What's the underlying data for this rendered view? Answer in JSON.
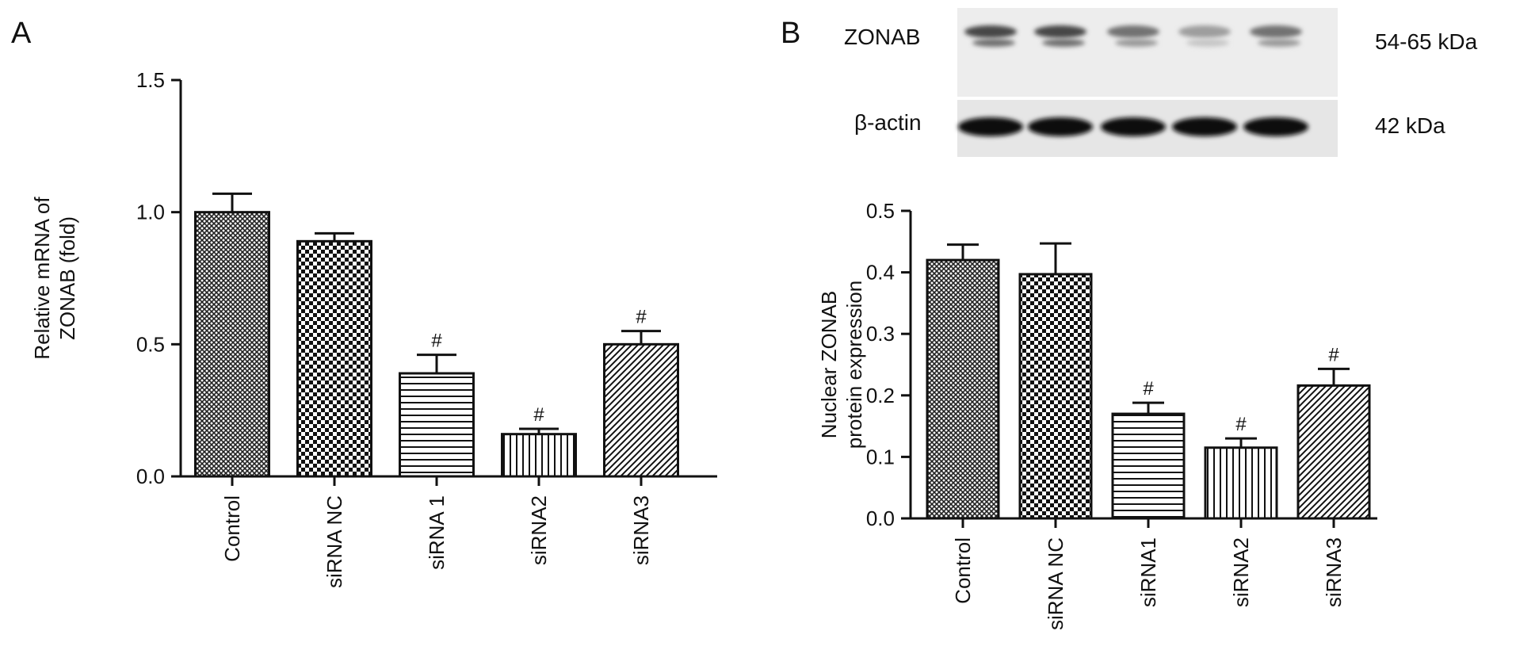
{
  "panels": [
    {
      "letter": "A"
    },
    {
      "letter": "B"
    }
  ],
  "blot": {
    "rows": [
      {
        "protein": "ZONAB",
        "size": "54-65 kDa",
        "band_intensity": [
          0.75,
          0.75,
          0.55,
          0.35,
          0.55
        ]
      },
      {
        "protein": "β-actin",
        "size": "42 kDa",
        "band_intensity": [
          1.0,
          1.0,
          1.0,
          1.0,
          1.0
        ]
      }
    ]
  },
  "chart_data": [
    {
      "type": "bar",
      "panel": "A",
      "categories": [
        "Control",
        "siRNA NC",
        "siRNA 1",
        "siRNA2",
        "siRNA3"
      ],
      "values": [
        1.0,
        0.89,
        0.39,
        0.16,
        0.5
      ],
      "errors": [
        0.07,
        0.03,
        0.07,
        0.02,
        0.05
      ],
      "annotations": [
        "",
        "",
        "#",
        "#",
        "#"
      ],
      "patterns": [
        "crosshatch",
        "checker",
        "hlines",
        "vlines",
        "diagonal"
      ],
      "ylabel": [
        "Relative mRNA of",
        "ZONAB (fold)"
      ],
      "ylim": [
        0,
        1.5
      ],
      "yticks": [
        0.0,
        0.5,
        1.0,
        1.5
      ],
      "ytick_labels": [
        "0.0",
        "0.5",
        "1.0",
        "1.5"
      ]
    },
    {
      "type": "bar",
      "panel": "B",
      "categories": [
        "Control",
        "siRNA NC",
        "siRNA1",
        "siRNA2",
        "siRNA3"
      ],
      "values": [
        0.42,
        0.397,
        0.17,
        0.115,
        0.216
      ],
      "errors": [
        0.025,
        0.05,
        0.018,
        0.015,
        0.027
      ],
      "annotations": [
        "",
        "",
        "#",
        "#",
        "#"
      ],
      "patterns": [
        "crosshatch",
        "checker",
        "hlines",
        "vlines",
        "diagonal"
      ],
      "ylabel": [
        "Nuclear ZONAB",
        "protein expression"
      ],
      "ylim": [
        0,
        0.5
      ],
      "yticks": [
        0.0,
        0.1,
        0.2,
        0.3,
        0.4,
        0.5
      ],
      "ytick_labels": [
        "0.0",
        "0.1",
        "0.2",
        "0.3",
        "0.4",
        "0.5"
      ]
    }
  ]
}
